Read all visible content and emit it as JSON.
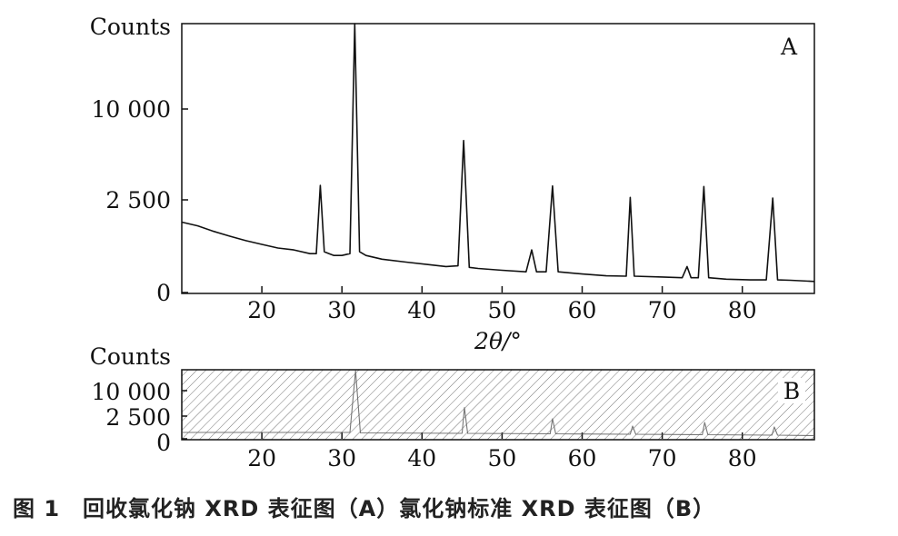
{
  "caption": "图 1　回收氯化钠 XRD 表征图（A）氯化钠标准 XRD 表征图（B）",
  "chart_data": [
    {
      "type": "line",
      "panel_label": "A",
      "ylabel": "Counts",
      "xlabel": "2θ/°",
      "xlim": [
        10,
        89
      ],
      "x_ticks": [
        20,
        30,
        40,
        50,
        60,
        70,
        80
      ],
      "y_ticks": [
        "0",
        "2 500",
        "10 000"
      ],
      "grid": false,
      "series": [
        {
          "x": [
            10.0,
            12,
            14,
            16,
            18,
            20,
            22,
            24,
            26,
            26.8,
            27.3,
            27.8,
            28.4,
            29,
            30,
            31.0,
            31.6,
            32.2,
            33,
            35,
            38,
            41,
            43,
            44.5,
            45.2,
            45.9,
            47,
            50,
            53,
            53.7,
            54.3,
            55.5,
            56.3,
            57.0,
            60,
            63,
            65.5,
            66.0,
            66.5,
            70,
            72.5,
            73.1,
            73.6,
            74.5,
            75.2,
            75.8,
            78,
            81,
            83,
            83.8,
            84.4,
            86,
            89
          ],
          "y": [
            1900,
            1800,
            1650,
            1520,
            1400,
            1300,
            1200,
            1150,
            1050,
            1050,
            3700,
            1100,
            1050,
            1000,
            1000,
            1050,
            11500,
            1100,
            1000,
            900,
            820,
            750,
            700,
            720,
            7400,
            680,
            650,
            600,
            560,
            1150,
            560,
            560,
            3650,
            560,
            500,
            450,
            440,
            2700,
            440,
            420,
            400,
            700,
            400,
            400,
            3600,
            400,
            360,
            340,
            340,
            2650,
            340,
            330,
            300
          ]
        }
      ]
    },
    {
      "type": "line",
      "panel_label": "B",
      "ylabel": "Counts",
      "xlim": [
        10,
        89
      ],
      "x_ticks": [
        20,
        30,
        40,
        50,
        60,
        70,
        80
      ],
      "y_ticks": [
        "0",
        "2 500",
        "10 000"
      ],
      "grid": false,
      "series": [
        {
          "x": [
            10,
            31.0,
            31.7,
            32.3,
            45.0,
            45.3,
            45.7,
            56.0,
            56.3,
            56.7,
            66.0,
            66.3,
            66.7,
            75.0,
            75.3,
            75.7,
            83.7,
            84.0,
            84.4,
            89
          ],
          "y": [
            700,
            700,
            12000,
            650,
            600,
            5000,
            600,
            550,
            2200,
            550,
            500,
            1400,
            500,
            450,
            1800,
            450,
            400,
            1300,
            400,
            350
          ]
        }
      ]
    }
  ]
}
